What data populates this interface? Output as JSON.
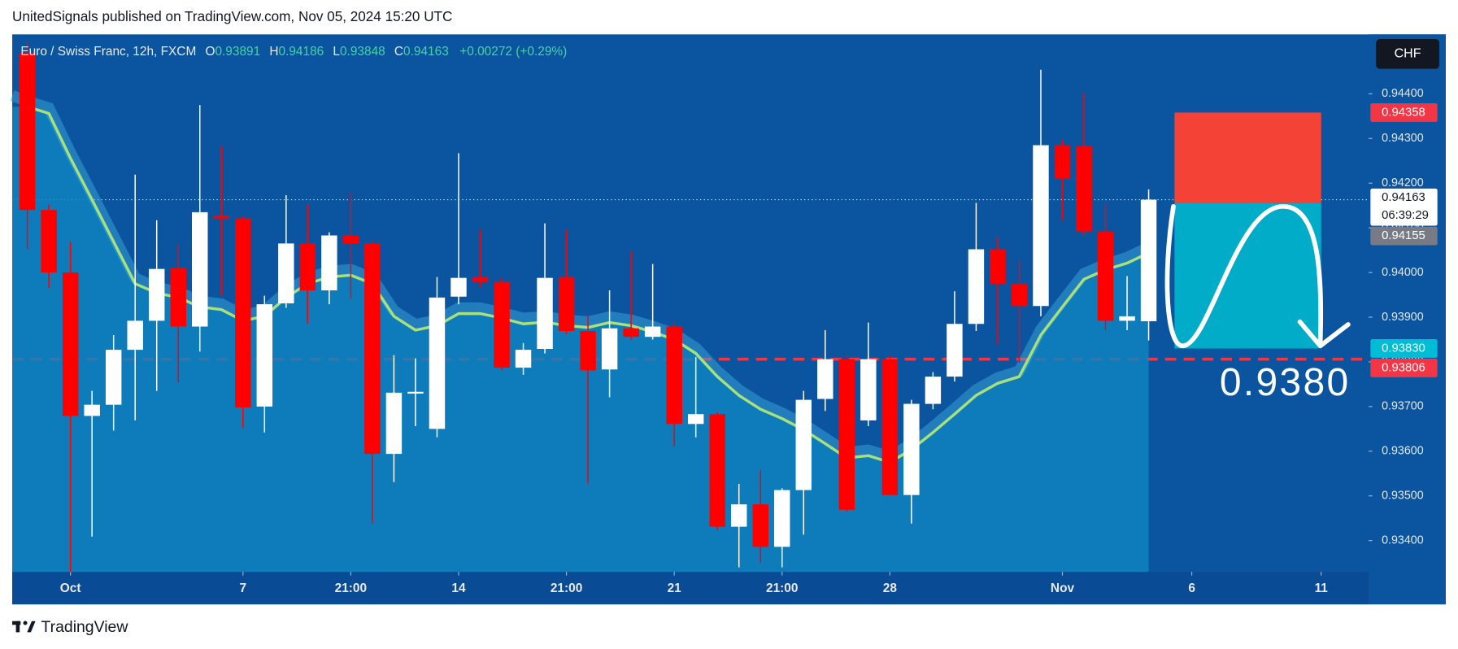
{
  "header": {
    "published": "UnitedSignals published on TradingView.com, Nov 05, 2024 15:20 UTC",
    "footer": "TradingView"
  },
  "chart_data": {
    "type": "candlestick",
    "title": "Euro / Swiss Franc, 12h, FXCM",
    "ohlc_legend": [
      {
        "key": "O",
        "value": "0.93891"
      },
      {
        "key": "H",
        "value": "0.94186"
      },
      {
        "key": "L",
        "value": "0.93848"
      },
      {
        "key": "C",
        "value": "0.94163"
      }
    ],
    "change": "+0.00272 (+0.29%)",
    "currency": "CHF",
    "open": [
      0.94492,
      0.9414,
      0.94,
      0.93679,
      0.93704,
      0.93827,
      0.93892,
      0.9401,
      0.93879,
      0.94127,
      0.94121,
      0.937,
      0.93931,
      0.94065,
      0.9396,
      0.94083,
      0.94065,
      0.93594,
      0.93729,
      0.9365,
      0.93946,
      0.9399,
      0.93979,
      0.93787,
      0.93829,
      0.9399,
      0.93869,
      0.93783,
      0.93875,
      0.93856,
      0.93879,
      0.93661,
      0.93683,
      0.93431,
      0.93481,
      0.93386,
      0.93513,
      0.93717,
      0.93806,
      0.93669,
      0.93806,
      0.93502,
      0.93706,
      0.93767,
      0.93885,
      0.94052,
      0.93975,
      0.93925,
      0.94285,
      0.94283,
      0.94092,
      0.93892,
      0.93891
    ],
    "high": [
      0.94517,
      0.94152,
      0.94069,
      0.93735,
      0.9386,
      0.94219,
      0.94117,
      0.94063,
      0.94375,
      0.94283,
      0.94127,
      0.93948,
      0.94173,
      0.94152,
      0.9409,
      0.94179,
      0.94073,
      0.93815,
      0.93808,
      0.9399,
      0.94267,
      0.94096,
      0.9399,
      0.93842,
      0.9411,
      0.94096,
      0.93902,
      0.9396,
      0.94048,
      0.94019,
      0.93888,
      0.93811,
      0.93688,
      0.93527,
      0.93558,
      0.93517,
      0.93735,
      0.93871,
      0.93815,
      0.93888,
      0.93813,
      0.93715,
      0.93777,
      0.93958,
      0.94156,
      0.94079,
      0.94027,
      0.94454,
      0.94298,
      0.94402,
      0.94152,
      0.93992,
      0.94186
    ],
    "low": [
      0.94052,
      0.93965,
      0.9333,
      0.93409,
      0.93646,
      0.93669,
      0.93735,
      0.93754,
      0.93823,
      0.93948,
      0.93652,
      0.93642,
      0.93921,
      0.93885,
      0.93929,
      0.93942,
      0.93438,
      0.93531,
      0.93656,
      0.93631,
      0.93929,
      0.93967,
      0.93781,
      0.93771,
      0.93819,
      0.93862,
      0.93527,
      0.93721,
      0.9385,
      0.9385,
      0.93611,
      0.93631,
      0.93423,
      0.9334,
      0.9335,
      0.9334,
      0.93413,
      0.9369,
      0.93465,
      0.93656,
      0.93502,
      0.93438,
      0.93694,
      0.93756,
      0.93869,
      0.9384,
      0.93798,
      0.93902,
      0.94117,
      0.94083,
      0.93871,
      0.93871,
      0.93848
    ],
    "close": [
      0.9414,
      0.94,
      0.93679,
      0.93704,
      0.93827,
      0.93892,
      0.94008,
      0.93879,
      0.94135,
      0.94121,
      0.93698,
      0.93929,
      0.94065,
      0.9396,
      0.94083,
      0.94065,
      0.93594,
      0.93731,
      0.93733,
      0.93944,
      0.93988,
      0.93979,
      0.93787,
      0.93827,
      0.93988,
      0.93869,
      0.93781,
      0.93875,
      0.93856,
      0.93879,
      0.93661,
      0.93683,
      0.93431,
      0.93481,
      0.93386,
      0.93513,
      0.93715,
      0.93806,
      0.93469,
      0.93806,
      0.93502,
      0.93706,
      0.93767,
      0.93885,
      0.94052,
      0.93975,
      0.93925,
      0.94285,
      0.9421,
      0.94092,
      0.93892,
      0.93902,
      0.94163
    ],
    "up_color": "#ffffff",
    "down_color": "#ff0000",
    "ma": {
      "color": "#a8e07c",
      "values": [
        0.94371,
        0.94356,
        0.94256,
        0.94163,
        0.94069,
        0.93975,
        0.93954,
        0.93944,
        0.93923,
        0.93917,
        0.93892,
        0.93902,
        0.93944,
        0.93975,
        0.9399,
        0.93994,
        0.93975,
        0.93902,
        0.93871,
        0.93881,
        0.93908,
        0.93908,
        0.93898,
        0.93885,
        0.93889,
        0.93881,
        0.93877,
        0.93888,
        0.93881,
        0.93867,
        0.9385,
        0.93819,
        0.93767,
        0.93725,
        0.93694,
        0.93673,
        0.93648,
        0.93617,
        0.93585,
        0.9359,
        0.93575,
        0.93604,
        0.93642,
        0.93683,
        0.93725,
        0.93752,
        0.93767,
        0.9386,
        0.93923,
        0.93985,
        0.94006,
        0.94021,
        0.94044
      ]
    },
    "area_color": "#0f84c0",
    "xlim": [
      -0.7,
      62.2
    ],
    "xticks": [
      {
        "value": 2,
        "label": "Oct"
      },
      {
        "value": 10,
        "label": "7"
      },
      {
        "value": 15,
        "label": "21:00"
      },
      {
        "value": 20,
        "label": "14"
      },
      {
        "value": 25,
        "label": "21:00"
      },
      {
        "value": 30,
        "label": "21"
      },
      {
        "value": 35,
        "label": "21:00"
      },
      {
        "value": 40,
        "label": "28"
      },
      {
        "value": 48,
        "label": "Nov"
      },
      {
        "value": 54,
        "label": "6"
      },
      {
        "value": 60,
        "label": "11"
      }
    ],
    "ylim": [
      0.9333,
      0.94533
    ],
    "yticks": [
      {
        "value": 0.934,
        "label": "0.93400"
      },
      {
        "value": 0.935,
        "label": "0.93500"
      },
      {
        "value": 0.936,
        "label": "0.93600"
      },
      {
        "value": 0.937,
        "label": "0.93700"
      },
      {
        "value": 0.938,
        "label": "0.93800"
      },
      {
        "value": 0.939,
        "label": "0.93900"
      },
      {
        "value": 0.94,
        "label": "0.94000"
      },
      {
        "value": 0.941,
        "label": "0.94100"
      },
      {
        "value": 0.942,
        "label": "0.94200"
      },
      {
        "value": 0.943,
        "label": "0.94300"
      },
      {
        "value": 0.944,
        "label": "0.94400"
      }
    ],
    "price_lines": [
      {
        "value": 0.93806,
        "color": "#f23645",
        "style": "dashed"
      },
      {
        "value": 0.94163,
        "color": "#ffffff",
        "style": "dotted"
      }
    ],
    "position": {
      "start": 53.2,
      "end": 60,
      "stop": 0.94358,
      "entry": 0.94155,
      "target": 0.9383,
      "stop_color": "#f44336",
      "target_color": "#00acc8"
    },
    "badges": [
      {
        "value": 0.94358,
        "label": "0.94358",
        "color": "#f23645"
      },
      {
        "value": 0.94163,
        "label": "0.94163",
        "sub": "06:39:29",
        "color": "#ffffff"
      },
      {
        "value": 0.94155,
        "label": "0.94155",
        "color": "#787b86"
      },
      {
        "value": 0.9383,
        "label": "0.93830",
        "color": "#00bcd4"
      },
      {
        "value": 0.93806,
        "label": "0.93806",
        "color": "#f23645"
      }
    ],
    "annotation": "0.9380"
  }
}
